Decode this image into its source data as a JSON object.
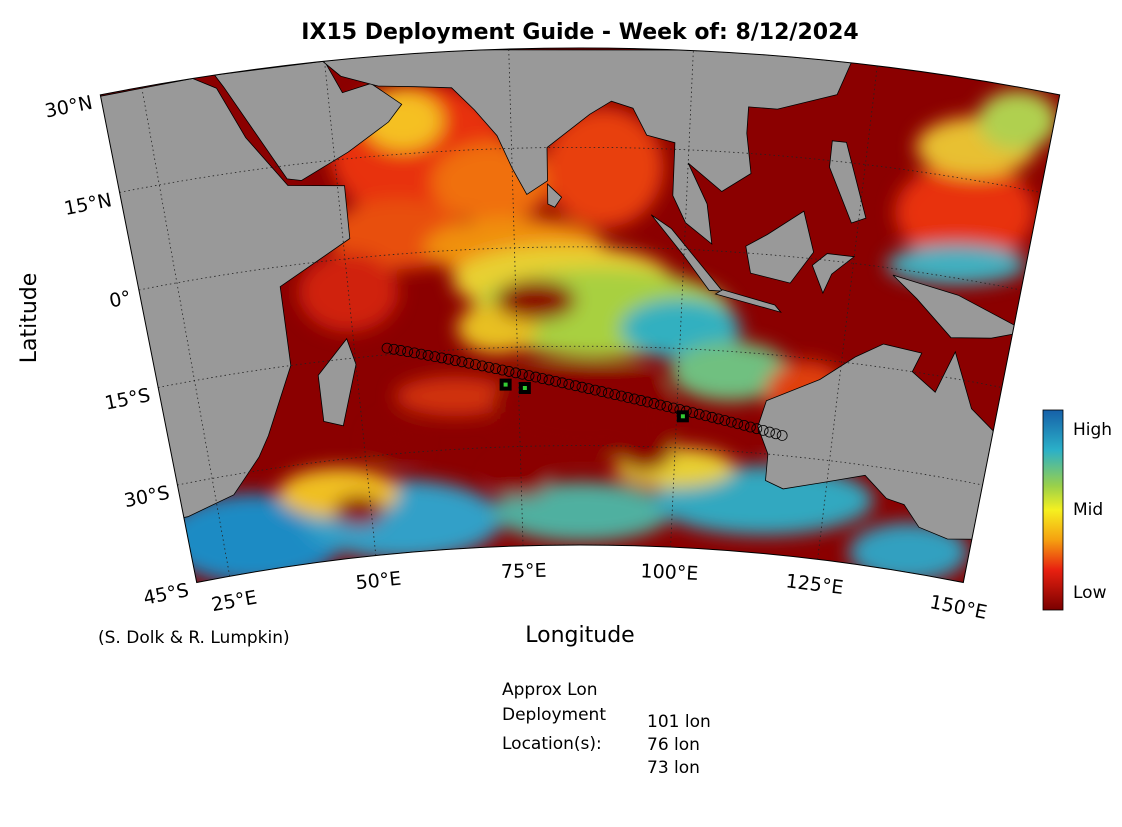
{
  "title": "IX15 Deployment Guide - Week of: 8/12/2024",
  "axes": {
    "y_label": "Latitude",
    "x_label": "Longitude",
    "lat_ticks": [
      {
        "value": 30,
        "label": "30°N"
      },
      {
        "value": 15,
        "label": "15°N"
      },
      {
        "value": 0,
        "label": "0°"
      },
      {
        "value": -15,
        "label": "15°S"
      },
      {
        "value": -30,
        "label": "30°S"
      },
      {
        "value": -45,
        "label": "45°S"
      }
    ],
    "lon_ticks": [
      {
        "value": 25,
        "label": "25°E"
      },
      {
        "value": 50,
        "label": "50°E"
      },
      {
        "value": 75,
        "label": "75°E"
      },
      {
        "value": 100,
        "label": "100°E"
      },
      {
        "value": 125,
        "label": "125°E"
      },
      {
        "value": 150,
        "label": "150°E"
      }
    ]
  },
  "colorbar": {
    "labels": [
      "High",
      "Mid",
      "Low"
    ]
  },
  "credit": "(S. Dolk & R. Lumpkin)",
  "deployment": {
    "heading": [
      "Approx Lon",
      "Deployment",
      "Location(s):"
    ],
    "locations": [
      "101 lon",
      "76 lon",
      "73 lon"
    ]
  }
}
